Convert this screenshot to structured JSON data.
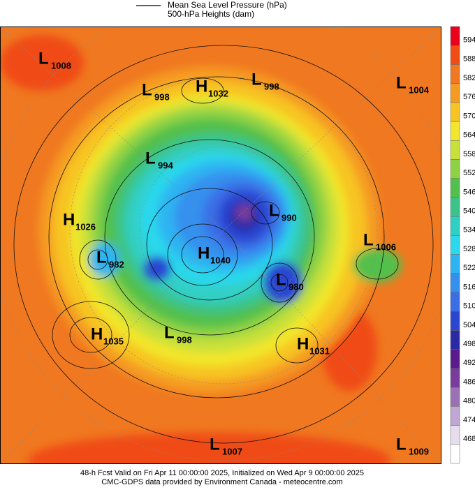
{
  "legend": {
    "lines": [
      "Mean Sea Level Pressure (hPa)",
      "500-hPa Heights (dam)"
    ]
  },
  "colorbar": {
    "labels": [
      594,
      588,
      582,
      576,
      570,
      564,
      558,
      552,
      546,
      540,
      534,
      528,
      522,
      516,
      510,
      504,
      498,
      492,
      486,
      480,
      474,
      468
    ],
    "colors": [
      "#e8001c",
      "#f04c14",
      "#f07820",
      "#f59a22",
      "#f7c424",
      "#f2e62c",
      "#c8e03a",
      "#8ed244",
      "#52c04c",
      "#3ac48a",
      "#30cfc4",
      "#2cd8ec",
      "#2eb4f2",
      "#3490ee",
      "#3a6ee6",
      "#2c46d2",
      "#2a2aa6",
      "#5a1c8c",
      "#7a3c9c",
      "#9a72b4",
      "#c0a6d2",
      "#e6dcee",
      "#ffffff"
    ]
  },
  "centers": [
    {
      "type": "L",
      "value": 1008
    },
    {
      "type": "L",
      "value": 998
    },
    {
      "type": "H",
      "value": 1032
    },
    {
      "type": "L",
      "value": 998
    },
    {
      "type": "L",
      "value": 1004
    },
    {
      "type": "L",
      "value": 994
    },
    {
      "type": "H",
      "value": 1026
    },
    {
      "type": "L",
      "value": 990
    },
    {
      "type": "L",
      "value": 1006
    },
    {
      "type": "L",
      "value": 982
    },
    {
      "type": "H",
      "value": 1040
    },
    {
      "type": "L",
      "value": 980
    },
    {
      "type": "H",
      "value": 1035
    },
    {
      "type": "L",
      "value": 998
    },
    {
      "type": "H",
      "value": 1031
    },
    {
      "type": "L",
      "value": 1007
    },
    {
      "type": "L",
      "value": 1009
    }
  ],
  "footer": {
    "lines": [
      "48-h Fcst Valid on Fri Apr 11 00:00:00 2025, Initialized on Wed Apr  9 00:00:00 2025",
      "CMC-GDPS data provided by Environment Canada - meteocentre.com"
    ]
  }
}
